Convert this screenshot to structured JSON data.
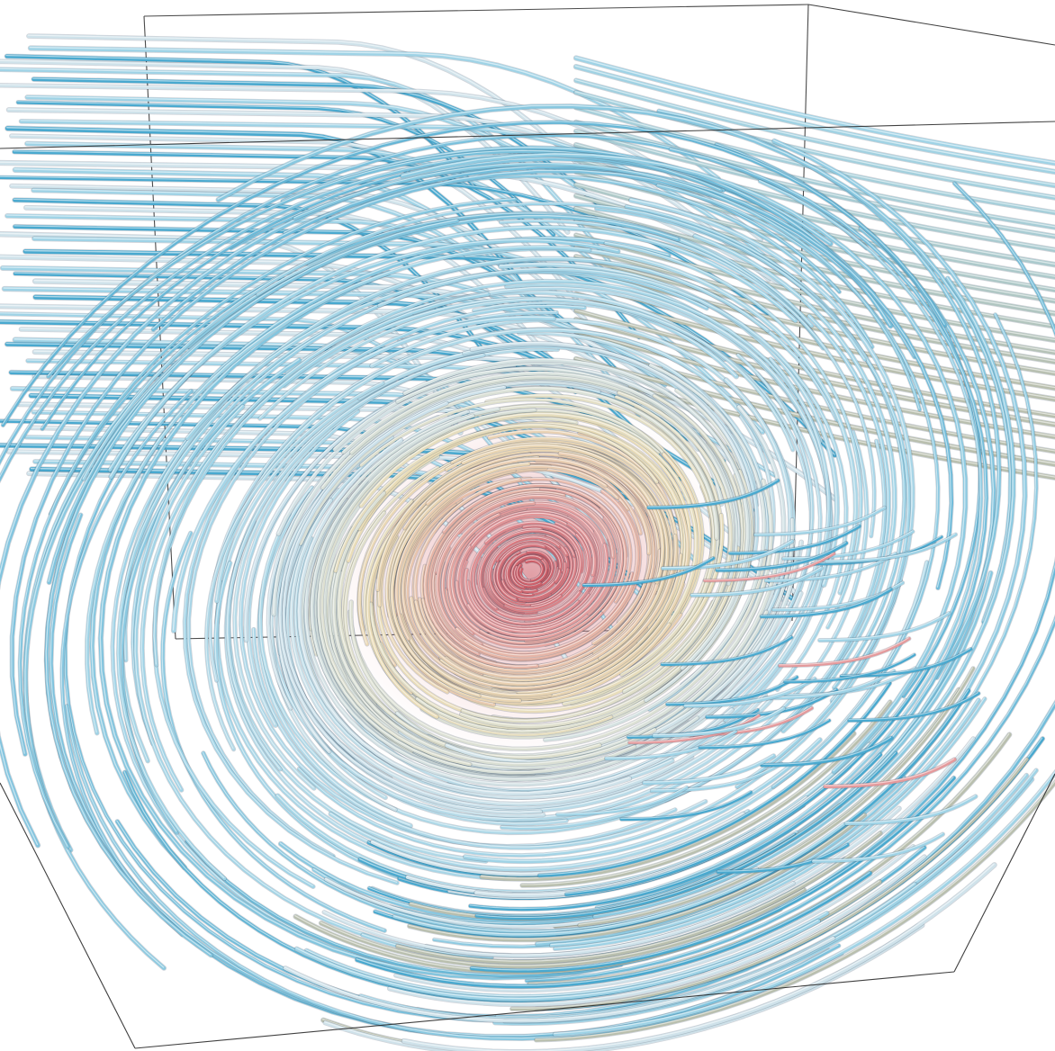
{
  "colors": {
    "background": "#ffffff",
    "box_edge": "#2b2b2b",
    "core_red": "#c8505c",
    "warm_pink": "#e49a9c",
    "cream": "#eadcb6",
    "pale_ice": "#cfe2ea",
    "light_blue": "#9fd3e6",
    "cyan_blue": "#4aa9cf",
    "sage_gray": "#b9bfae"
  },
  "icons": {
    "scene": "vortex-streamtubes-image"
  }
}
